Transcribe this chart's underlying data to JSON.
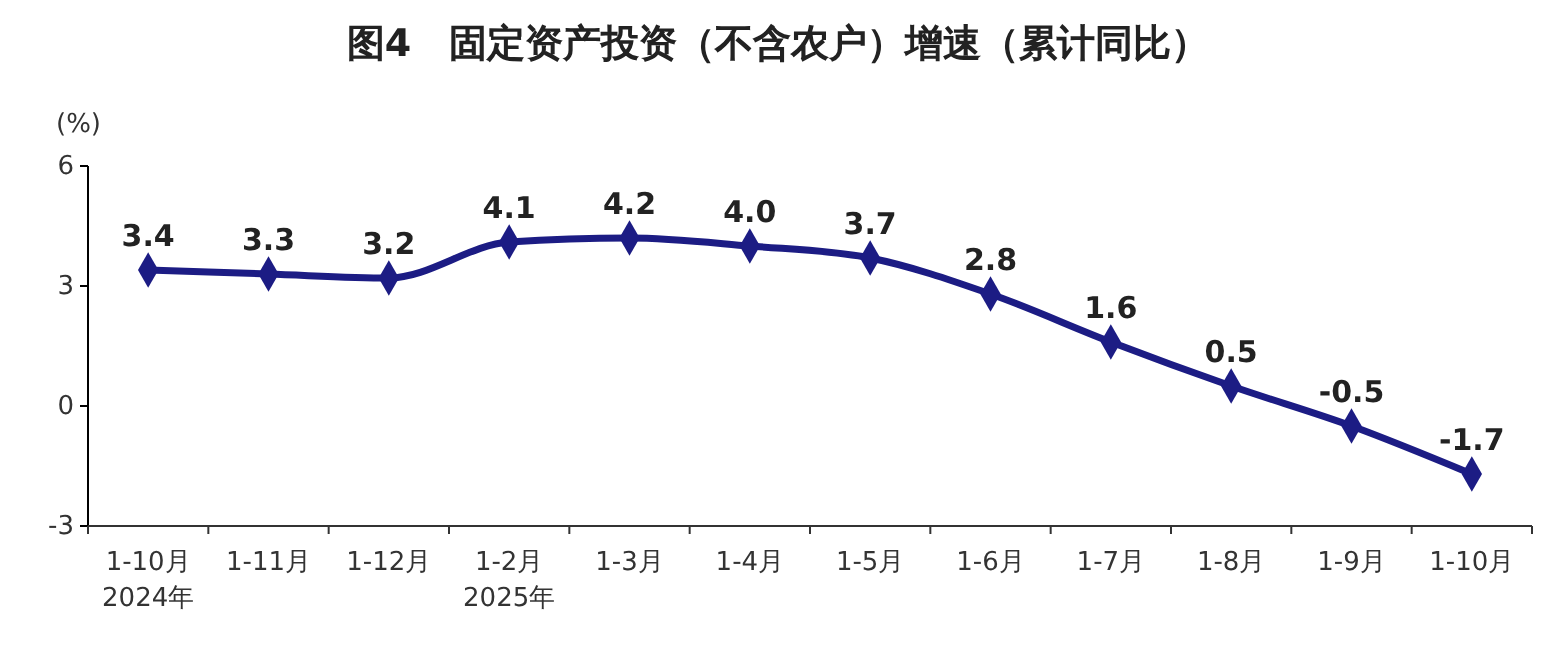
{
  "chart_data": {
    "type": "line",
    "title": "图4　固定资产投资（不含农户）增速（累计同比）",
    "ylabel": "(%)",
    "categories": [
      "1-10月\n2024年",
      "1-11月",
      "1-12月",
      "1-2月\n2025年",
      "1-3月",
      "1-4月",
      "1-5月",
      "1-6月",
      "1-7月",
      "1-8月",
      "1-9月",
      "1-10月"
    ],
    "series": [
      {
        "color": "#1c1c84",
        "values": [
          3.4,
          3.3,
          3.2,
          4.1,
          4.2,
          4.0,
          3.7,
          2.8,
          1.6,
          0.5,
          -0.5,
          -1.7
        ],
        "value_labels": [
          "3.4",
          "3.3",
          "3.2",
          "4.1",
          "4.2",
          "4.0",
          "3.7",
          "2.8",
          "1.6",
          "0.5",
          "-0.5",
          "-1.7"
        ]
      }
    ],
    "ylim": [
      -3,
      6
    ],
    "yticks": [
      -3,
      0,
      3,
      6
    ],
    "marker": "diamond",
    "line_style": "solid"
  }
}
